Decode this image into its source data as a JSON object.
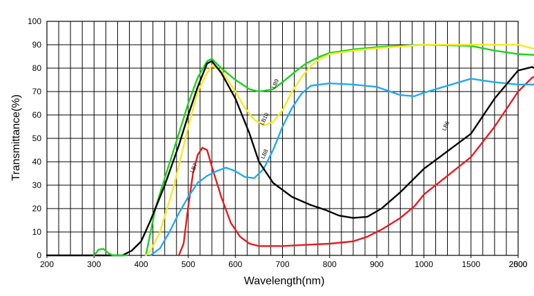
{
  "chart_data": {
    "type": "line",
    "xlabel": "Wavelength(nm)",
    "ylabel": "Transmittance(%)",
    "x_tick_labels": [
      "200",
      "300",
      "400",
      "500",
      "600",
      "700",
      "800",
      "900",
      "1000",
      "1500",
      "2000",
      "2500"
    ],
    "y_tick_labels": [
      "0",
      "10",
      "20",
      "30",
      "40",
      "50",
      "60",
      "70",
      "80",
      "90",
      "100"
    ],
    "ylim": [
      0,
      100
    ],
    "x_scale": "piecewise: 200–1000 nm at equal 100 nm spacing, then 1500, 2000, 2500 nm at the same spacing",
    "grid": true,
    "series": [
      {
        "name": "LB7",
        "color": "#e8191c",
        "label_at": {
          "x": 515,
          "y": 37
        },
        "points": [
          [
            480,
            0
          ],
          [
            490,
            5
          ],
          [
            500,
            21
          ],
          [
            510,
            35
          ],
          [
            520,
            43
          ],
          [
            530,
            46
          ],
          [
            540,
            45
          ],
          [
            550,
            38
          ],
          [
            570,
            25
          ],
          [
            590,
            14
          ],
          [
            610,
            8
          ],
          [
            630,
            5
          ],
          [
            650,
            4
          ],
          [
            700,
            4
          ],
          [
            750,
            4.5
          ],
          [
            800,
            5
          ],
          [
            850,
            6
          ],
          [
            880,
            8
          ],
          [
            910,
            11
          ],
          [
            950,
            16
          ],
          [
            980,
            21
          ],
          [
            1000,
            26
          ],
          [
            1500,
            42
          ],
          [
            1750,
            55
          ],
          [
            2000,
            70
          ],
          [
            2150,
            76
          ],
          [
            2300,
            77.5
          ],
          [
            2500,
            78
          ]
        ]
      },
      {
        "name": "LB8",
        "color": "#1eaaf1",
        "label_at": {
          "x": 665,
          "y": 43
        },
        "points": [
          [
            420,
            0
          ],
          [
            440,
            3
          ],
          [
            460,
            10
          ],
          [
            480,
            18
          ],
          [
            500,
            25
          ],
          [
            520,
            31
          ],
          [
            540,
            34
          ],
          [
            560,
            36
          ],
          [
            580,
            37.5
          ],
          [
            600,
            36
          ],
          [
            620,
            33.5
          ],
          [
            640,
            33
          ],
          [
            660,
            37
          ],
          [
            680,
            45
          ],
          [
            700,
            55
          ],
          [
            720,
            63
          ],
          [
            740,
            69
          ],
          [
            760,
            72.5
          ],
          [
            800,
            73.5
          ],
          [
            850,
            73
          ],
          [
            900,
            72
          ],
          [
            950,
            68.5
          ],
          [
            980,
            68
          ],
          [
            1000,
            69.5
          ],
          [
            1500,
            75.5
          ],
          [
            1750,
            74
          ],
          [
            2000,
            73
          ],
          [
            2500,
            73
          ]
        ]
      },
      {
        "name": "LB9",
        "color": "#19d219",
        "label_at": {
          "x": 688,
          "y": 73
        },
        "points": [
          [
            410,
            0
          ],
          [
            420,
            10
          ],
          [
            430,
            20
          ],
          [
            450,
            33
          ],
          [
            480,
            52
          ],
          [
            500,
            65
          ],
          [
            520,
            76
          ],
          [
            540,
            83
          ],
          [
            550,
            84
          ],
          [
            570,
            80
          ],
          [
            600,
            75
          ],
          [
            630,
            71
          ],
          [
            650,
            70
          ],
          [
            680,
            71
          ],
          [
            700,
            74
          ],
          [
            730,
            79
          ],
          [
            750,
            82
          ],
          [
            780,
            85
          ],
          [
            800,
            86.5
          ],
          [
            850,
            88
          ],
          [
            900,
            89
          ],
          [
            1000,
            90
          ],
          [
            1500,
            89.5
          ],
          [
            1750,
            87.5
          ],
          [
            2000,
            86
          ],
          [
            2500,
            85
          ]
        ]
      },
      {
        "name": "LB10",
        "color": "#f5ea1e",
        "label_at": {
          "x": 665,
          "y": 58
        },
        "points": [
          [
            410,
            0
          ],
          [
            420,
            2
          ],
          [
            440,
            10
          ],
          [
            470,
            30
          ],
          [
            500,
            55
          ],
          [
            520,
            70
          ],
          [
            540,
            78
          ],
          [
            550,
            81
          ],
          [
            570,
            79
          ],
          [
            600,
            70
          ],
          [
            620,
            63
          ],
          [
            640,
            58
          ],
          [
            660,
            55.5
          ],
          [
            680,
            57
          ],
          [
            700,
            62
          ],
          [
            720,
            70
          ],
          [
            740,
            76
          ],
          [
            760,
            81
          ],
          [
            780,
            84
          ],
          [
            800,
            86
          ],
          [
            850,
            87.5
          ],
          [
            900,
            88.5
          ],
          [
            1000,
            90
          ],
          [
            1500,
            90
          ],
          [
            1750,
            90
          ],
          [
            2000,
            90
          ],
          [
            2250,
            87.5
          ],
          [
            2500,
            84
          ]
        ]
      },
      {
        "name": "LB6",
        "color": "#000000",
        "label_at": {
          "x": 1250,
          "y": 55
        },
        "points": [
          [
            200,
            0
          ],
          [
            300,
            0
          ],
          [
            360,
            0
          ],
          [
            380,
            2
          ],
          [
            400,
            6
          ],
          [
            420,
            15
          ],
          [
            450,
            30
          ],
          [
            480,
            47
          ],
          [
            500,
            60
          ],
          [
            520,
            72
          ],
          [
            540,
            82
          ],
          [
            550,
            83
          ],
          [
            570,
            78
          ],
          [
            600,
            67
          ],
          [
            630,
            52
          ],
          [
            650,
            40
          ],
          [
            680,
            31
          ],
          [
            720,
            25
          ],
          [
            760,
            21.5
          ],
          [
            790,
            19.5
          ],
          [
            820,
            17
          ],
          [
            850,
            16
          ],
          [
            880,
            16.5
          ],
          [
            910,
            20
          ],
          [
            950,
            27
          ],
          [
            1000,
            37
          ],
          [
            1500,
            52
          ],
          [
            1750,
            67
          ],
          [
            2000,
            79
          ],
          [
            2150,
            80.5
          ],
          [
            2300,
            77
          ],
          [
            2500,
            69
          ]
        ]
      },
      {
        "name": "",
        "color": "#19d219",
        "label_at": null,
        "points": [
          [
            300,
            0
          ],
          [
            310,
            2.5
          ],
          [
            320,
            2.8
          ],
          [
            330,
            1
          ],
          [
            340,
            0
          ],
          [
            360,
            0
          ],
          [
            370,
            0
          ]
        ]
      }
    ]
  }
}
